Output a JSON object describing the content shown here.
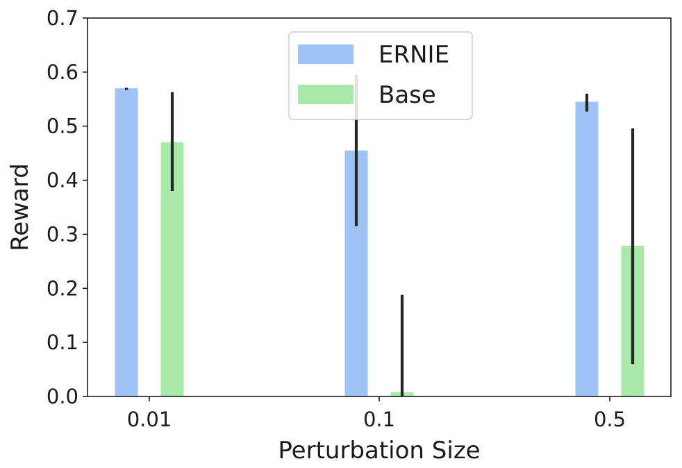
{
  "chart_data": {
    "type": "bar",
    "xlabel": "Perturbation Size",
    "ylabel": "Reward",
    "categories": [
      "0.01",
      "0.1",
      "0.5"
    ],
    "ylim": [
      0.0,
      0.7
    ],
    "yticks": [
      "0.0",
      "0.1",
      "0.2",
      "0.3",
      "0.4",
      "0.5",
      "0.6",
      "0.7"
    ],
    "grid": false,
    "legend_position": "top-center",
    "series": [
      {
        "name": "ERNIE",
        "color": "#9dc3f7",
        "values": [
          0.57,
          0.455,
          0.545
        ],
        "error_low": [
          0.567,
          0.315,
          0.527
        ],
        "error_high": [
          0.571,
          0.595,
          0.56
        ]
      },
      {
        "name": "Base",
        "color": "#a8e8a8",
        "values": [
          0.47,
          0.008,
          0.279
        ],
        "error_low": [
          0.38,
          0.0,
          0.06
        ],
        "error_high": [
          0.563,
          0.188,
          0.496
        ]
      }
    ],
    "error_bar_color": "#262626"
  }
}
